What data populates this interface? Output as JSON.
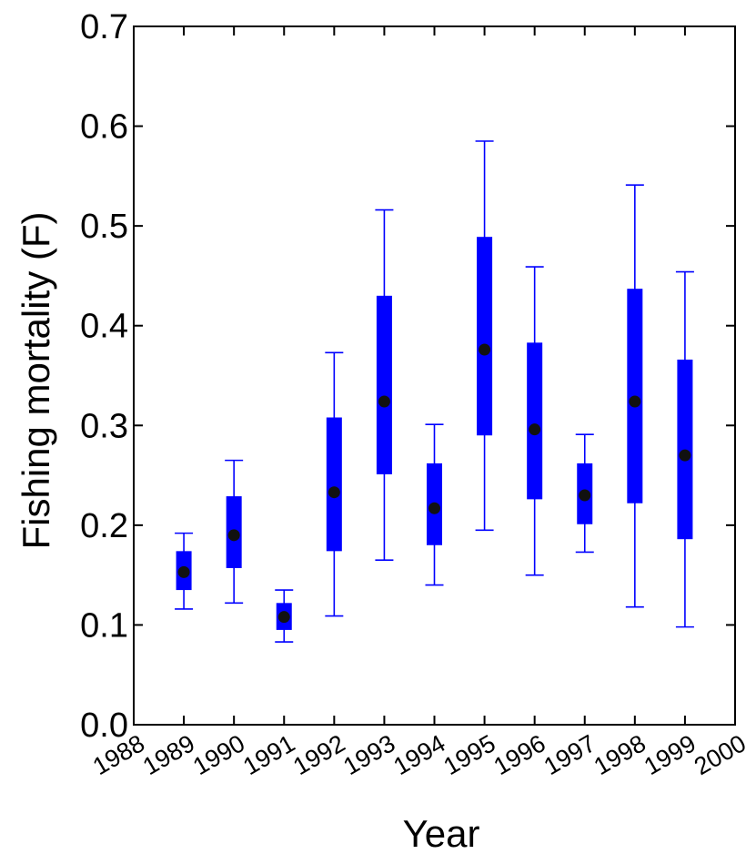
{
  "chart_data": {
    "type": "box",
    "title": "",
    "xlabel": "Year",
    "ylabel": "Fishing mortality (F)",
    "xlim": [
      1988,
      2000
    ],
    "ylim": [
      0.0,
      0.7
    ],
    "x_ticks": [
      "1988",
      "1989",
      "1990",
      "1991",
      "1992",
      "1993",
      "1994",
      "1995",
      "1996",
      "1997",
      "1998",
      "1999",
      "2000"
    ],
    "y_ticks": [
      "0.0",
      "0.1",
      "0.2",
      "0.3",
      "0.4",
      "0.5",
      "0.6",
      "0.7"
    ],
    "grid": false,
    "colors": {
      "box": "#0000ff",
      "median": "#111111",
      "axis": "#000000"
    },
    "series": [
      {
        "points": [
          {
            "x": 1989,
            "whisker_low": 0.116,
            "q1": 0.135,
            "median": 0.153,
            "q3": 0.174,
            "whisker_high": 0.192
          },
          {
            "x": 1990,
            "whisker_low": 0.122,
            "q1": 0.157,
            "median": 0.19,
            "q3": 0.229,
            "whisker_high": 0.265
          },
          {
            "x": 1991,
            "whisker_low": 0.083,
            "q1": 0.095,
            "median": 0.108,
            "q3": 0.122,
            "whisker_high": 0.135
          },
          {
            "x": 1992,
            "whisker_low": 0.109,
            "q1": 0.174,
            "median": 0.233,
            "q3": 0.308,
            "whisker_high": 0.373
          },
          {
            "x": 1993,
            "whisker_low": 0.165,
            "q1": 0.251,
            "median": 0.324,
            "q3": 0.43,
            "whisker_high": 0.516
          },
          {
            "x": 1994,
            "whisker_low": 0.14,
            "q1": 0.18,
            "median": 0.217,
            "q3": 0.262,
            "whisker_high": 0.301
          },
          {
            "x": 1995,
            "whisker_low": 0.195,
            "q1": 0.29,
            "median": 0.376,
            "q3": 0.489,
            "whisker_high": 0.585
          },
          {
            "x": 1996,
            "whisker_low": 0.15,
            "q1": 0.226,
            "median": 0.296,
            "q3": 0.383,
            "whisker_high": 0.459
          },
          {
            "x": 1997,
            "whisker_low": 0.173,
            "q1": 0.201,
            "median": 0.23,
            "q3": 0.262,
            "whisker_high": 0.291
          },
          {
            "x": 1998,
            "whisker_low": 0.118,
            "q1": 0.222,
            "median": 0.324,
            "q3": 0.437,
            "whisker_high": 0.541
          },
          {
            "x": 1999,
            "whisker_low": 0.098,
            "q1": 0.186,
            "median": 0.27,
            "q3": 0.366,
            "whisker_high": 0.454
          }
        ]
      }
    ]
  }
}
